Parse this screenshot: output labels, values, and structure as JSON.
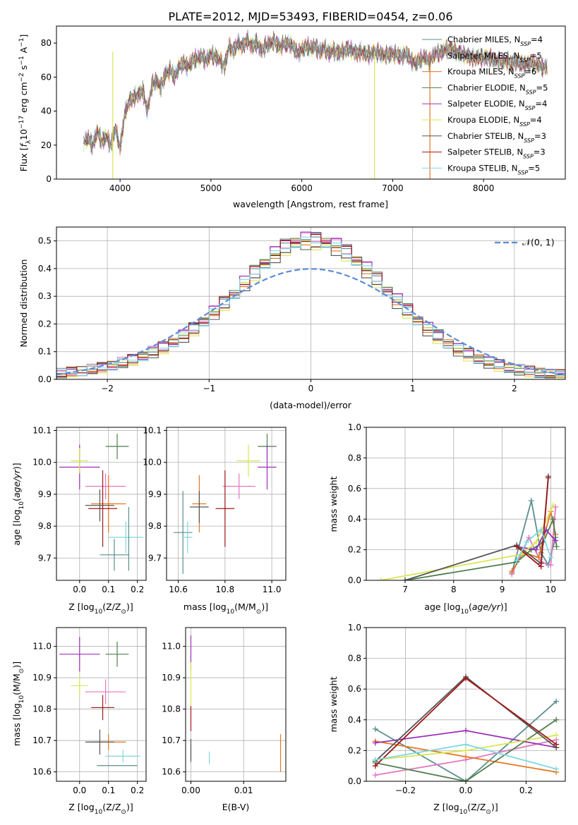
{
  "title": "PLATE=2012, MJD=53493, FIBERID=0454, z=0.06",
  "colors": {
    "Chabrier MILES": "#5b8e8e",
    "Salpeter MILES": "#e377c2",
    "Kroupa MILES": "#e6761f",
    "Chabrier ELODIE": "#4f7f4f",
    "Salpeter ELODIE": "#9b30b8",
    "Kroupa ELODIE": "#d9e650",
    "Chabrier STELIB": "#555555",
    "Salpeter STELIB": "#a01818",
    "Kroupa STELIB": "#80d8e0",
    "gauss": "#5b8bd8",
    "grid": "#b0b0b0"
  },
  "chart_data": [
    {
      "id": "spectrum",
      "type": "line",
      "xlabel": "wavelength [Angstrom, rest frame]",
      "ylabel_main": "Flux [",
      "ylabel_sub": "λ",
      "ylabel_mid": "10",
      "ylabel_sup1": "−17",
      "ylabel_rest": " erg cm",
      "ylabel_sup2": "−2",
      "ylabel_rest2": " s",
      "ylabel_sup3": "−1",
      "ylabel_rest3": " A",
      "ylabel_sup4": "−1",
      "ylabel_end": "]",
      "xlim": [
        3300,
        8900
      ],
      "ylim": [
        0,
        90
      ],
      "xticks": [
        4000,
        5000,
        6000,
        7000,
        8000
      ],
      "yticks": [
        0,
        20,
        40,
        60,
        80
      ],
      "x": [
        3600,
        3650,
        3700,
        3750,
        3800,
        3850,
        3900,
        3950,
        4000,
        4050,
        4100,
        4150,
        4200,
        4250,
        4300,
        4350,
        4400,
        4450,
        4500,
        4550,
        4600,
        4650,
        4700,
        4750,
        4800,
        4850,
        4900,
        4950,
        5000,
        5050,
        5100,
        5150,
        5200,
        5250,
        5300,
        5350,
        5400,
        5450,
        5500,
        5550,
        5600,
        5650,
        5700,
        5750,
        5800,
        5850,
        5900,
        5950,
        6000,
        6050,
        6100,
        6150,
        6200,
        6250,
        6300,
        6350,
        6400,
        6450,
        6500,
        6550,
        6600,
        6650,
        6700,
        6750,
        6800,
        6850,
        6900,
        6950,
        7000,
        7050,
        7100,
        7150,
        7200,
        7250,
        7300,
        7350,
        7400,
        7450,
        7500,
        7550,
        7600,
        7650,
        7700,
        7750,
        7800,
        7850,
        7900,
        7950,
        8000,
        8050,
        8100,
        8150,
        8200,
        8250,
        8300,
        8350,
        8400,
        8450,
        8500,
        8550,
        8600,
        8650,
        8700
      ],
      "y": [
        22,
        24,
        20,
        28,
        22,
        25,
        20,
        30,
        18,
        38,
        46,
        48,
        50,
        52,
        40,
        55,
        58,
        54,
        62,
        64,
        60,
        66,
        68,
        66,
        70,
        71,
        72,
        70,
        73,
        72,
        70,
        66,
        78,
        76,
        80,
        78,
        82,
        78,
        80,
        76,
        78,
        80,
        81,
        78,
        79,
        80,
        78,
        74,
        76,
        78,
        77,
        78,
        75,
        77,
        74,
        76,
        74,
        75,
        77,
        76,
        74,
        75,
        74,
        73,
        75,
        74,
        73,
        73,
        74,
        73,
        72,
        74,
        70,
        68,
        70,
        72,
        69,
        73,
        74,
        75,
        77,
        76,
        75,
        74,
        73,
        72,
        71,
        72,
        71,
        72,
        70,
        70,
        69,
        70,
        68,
        69,
        68,
        67,
        68,
        68,
        67,
        66,
        66
      ],
      "legend": [
        {
          "name": "Chabrier MILES",
          "n": "4"
        },
        {
          "name": "Salpeter MILES",
          "n": "5"
        },
        {
          "name": "Kroupa MILES",
          "n": "6"
        },
        {
          "name": "Chabrier ELODIE",
          "n": "5"
        },
        {
          "name": "Salpeter ELODIE",
          "n": "4"
        },
        {
          "name": "Kroupa ELODIE",
          "n": "4"
        },
        {
          "name": "Chabrier STELIB",
          "n": "3"
        },
        {
          "name": "Salpeter STELIB",
          "n": "3"
        },
        {
          "name": "Kroupa STELIB",
          "n": "5"
        }
      ],
      "legend_sub": "SSP",
      "legend_prefix": "N",
      "dropouts": [
        {
          "series": "Kroupa ELODIE",
          "x": 3920
        },
        {
          "series": "Kroupa ELODIE",
          "x": 6800
        },
        {
          "series": "Kroupa MILES",
          "x": 7410
        }
      ]
    },
    {
      "id": "residuals",
      "type": "histogram",
      "xlabel": "(data-model)/error",
      "ylabel": "Normed distribution",
      "xlim": [
        -2.5,
        2.5
      ],
      "ylim": [
        0,
        0.55
      ],
      "xticks": [
        -2,
        -1,
        0,
        1,
        2
      ],
      "xtick_labels": [
        "−2",
        "−1",
        "0",
        "1",
        "2"
      ],
      "yticks": [
        0.0,
        0.1,
        0.2,
        0.3,
        0.4,
        0.5
      ],
      "ytick_labels": [
        "0.0",
        "0.1",
        "0.2",
        "0.3",
        "0.4",
        "0.5"
      ],
      "legend_label": "𝒩(0, 1)",
      "bin_edges_start": -2.5,
      "bin_width": 0.1,
      "base_profile": [
        0.022,
        0.026,
        0.03,
        0.036,
        0.042,
        0.05,
        0.06,
        0.071,
        0.084,
        0.098,
        0.115,
        0.135,
        0.157,
        0.182,
        0.21,
        0.242,
        0.275,
        0.31,
        0.348,
        0.385,
        0.42,
        0.452,
        0.478,
        0.495,
        0.502,
        0.5,
        0.495,
        0.48,
        0.458,
        0.43,
        0.397,
        0.36,
        0.322,
        0.284,
        0.248,
        0.214,
        0.183,
        0.155,
        0.13,
        0.108,
        0.09,
        0.075,
        0.062,
        0.051,
        0.042,
        0.035,
        0.029,
        0.024,
        0.02,
        0.017
      ],
      "series_offsets": [
        0.0,
        0.01,
        -0.01,
        0.015,
        0.02,
        -0.015,
        -0.02,
        0.005,
        -0.005
      ]
    },
    {
      "id": "age_vs_Z",
      "type": "scatter",
      "xlabel": "Z [log",
      "xlabel_tail": "(Z/Z",
      "xlabel_end": ")]",
      "ylabel": "age  [log",
      "ylabel_tail": "(age/yr)]",
      "xlim": [
        -0.08,
        0.23
      ],
      "ylim": [
        9.63,
        10.11
      ],
      "xticks": [
        0.0,
        0.1,
        0.2
      ],
      "xtick_labels": [
        "0.0",
        "0.1",
        "0.2"
      ],
      "yticks": [
        9.7,
        9.8,
        9.9,
        10.0,
        10.1
      ],
      "ytick_labels": [
        "9.7",
        "9.8",
        "9.9",
        "10.0",
        "10.1"
      ],
      "points": [
        {
          "series": "Chabrier MILES",
          "x": 0.12,
          "y": 9.71,
          "xe": 0.05,
          "ye": 0.05
        },
        {
          "series": "Salpeter MILES",
          "x": 0.09,
          "y": 9.925,
          "xe": 0.07,
          "ye": 0.04
        },
        {
          "series": "Kroupa MILES",
          "x": 0.1,
          "y": 9.87,
          "xe": 0.06,
          "ye": 0.09
        },
        {
          "series": "Chabrier ELODIE",
          "x": 0.13,
          "y": 10.05,
          "xe": 0.04,
          "ye": 0.04
        },
        {
          "series": "Salpeter ELODIE",
          "x": 0.0,
          "y": 9.985,
          "xe": 0.07,
          "ye": 0.07
        },
        {
          "series": "Kroupa ELODIE",
          "x": 0.0,
          "y": 10.005,
          "xe": 0.03,
          "ye": 0.04
        },
        {
          "series": "Chabrier STELIB",
          "x": 0.07,
          "y": 9.865,
          "xe": 0.05,
          "ye": 0.05
        },
        {
          "series": "Salpeter STELIB",
          "x": 0.08,
          "y": 9.855,
          "xe": 0.05,
          "ye": 0.12
        },
        {
          "series": "Kroupa STELIB",
          "x": 0.16,
          "y": 9.765,
          "xe": 0.06,
          "ye": 0.05
        },
        {
          "series": "Chabrier MILES2",
          "x": 0.17,
          "y": 9.76,
          "xe": 0.0,
          "ye": 0.1
        }
      ]
    },
    {
      "id": "age_vs_mass",
      "type": "scatter",
      "xlabel": "mass [log",
      "xlabel_tail": "(M/M",
      "xlabel_end": ")]",
      "xlim": [
        10.55,
        11.06
      ],
      "ylim": [
        9.63,
        10.11
      ],
      "xticks": [
        10.6,
        10.8,
        11.0
      ],
      "xtick_labels": [
        "10.6",
        "10.8",
        "11.0"
      ],
      "yticks": [
        9.7,
        9.8,
        9.9,
        10.0,
        10.1
      ],
      "ytick_labels": [
        "9.7",
        "9.8",
        "9.9",
        "10.0",
        "10.1"
      ],
      "points": [
        {
          "series": "Chabrier MILES",
          "x": 10.62,
          "y": 9.78,
          "xe": 0.04,
          "ye": 0.13
        },
        {
          "series": "Salpeter MILES",
          "x": 10.86,
          "y": 9.925,
          "xe": 0.07,
          "ye": 0.04
        },
        {
          "series": "Kroupa MILES",
          "x": 10.69,
          "y": 9.87,
          "xe": 0.03,
          "ye": 0.09
        },
        {
          "series": "Chabrier ELODIE",
          "x": 10.98,
          "y": 10.05,
          "xe": 0.04,
          "ye": 0.04
        },
        {
          "series": "Salpeter ELODIE",
          "x": 10.98,
          "y": 9.985,
          "xe": 0.04,
          "ye": 0.07
        },
        {
          "series": "Kroupa ELODIE",
          "x": 10.9,
          "y": 10.005,
          "xe": 0.05,
          "ye": 0.05
        },
        {
          "series": "Chabrier STELIB",
          "x": 10.69,
          "y": 9.86,
          "xe": 0.04,
          "ye": 0.05
        },
        {
          "series": "Salpeter STELIB",
          "x": 10.8,
          "y": 9.855,
          "xe": 0.04,
          "ye": 0.12
        },
        {
          "series": "Kroupa STELIB",
          "x": 10.64,
          "y": 9.765,
          "xe": 0.02,
          "ye": 0.05
        }
      ]
    },
    {
      "id": "massweight_vs_age",
      "type": "line",
      "xlabel": "age  [log",
      "xlabel_tail": "(age/yr)]",
      "ylabel": "mass weight",
      "xlim": [
        6.2,
        10.3
      ],
      "ylim": [
        0,
        1.0
      ],
      "xticks": [
        7,
        8,
        9,
        10
      ],
      "xtick_labels": [
        "7",
        "8",
        "9",
        "10"
      ],
      "yticks": [
        0.0,
        0.2,
        0.4,
        0.6,
        0.8,
        1.0
      ],
      "ytick_labels": [
        "0.0",
        "0.2",
        "0.4",
        "0.6",
        "0.8",
        "1.0"
      ],
      "series": [
        {
          "name": "Chabrier MILES",
          "x": [
            9.2,
            9.6,
            9.8,
            9.95,
            10.1
          ],
          "y": [
            0.05,
            0.52,
            0.18,
            0.1,
            0.28
          ]
        },
        {
          "name": "Salpeter MILES",
          "x": [
            9.2,
            9.55,
            9.8,
            10.0,
            10.1
          ],
          "y": [
            0.04,
            0.28,
            0.12,
            0.1,
            0.48
          ]
        },
        {
          "name": "Kroupa MILES",
          "x": [
            9.2,
            9.45,
            9.75,
            10.0,
            10.1
          ],
          "y": [
            0.06,
            0.18,
            0.15,
            0.45,
            0.3
          ]
        },
        {
          "name": "Chabrier ELODIE",
          "x": [
            7.0,
            9.3,
            9.6,
            9.85,
            10.05,
            10.12
          ],
          "y": [
            0.0,
            0.12,
            0.2,
            0.25,
            0.4,
            0.22
          ]
        },
        {
          "name": "Salpeter ELODIE",
          "x": [
            9.3,
            9.7,
            9.9,
            10.1
          ],
          "y": [
            0.22,
            0.2,
            0.33,
            0.26
          ]
        },
        {
          "name": "Kroupa ELODIE",
          "x": [
            6.5,
            9.4,
            9.7,
            10.05
          ],
          "y": [
            0.0,
            0.17,
            0.25,
            0.49
          ]
        },
        {
          "name": "Chabrier STELIB",
          "x": [
            7.0,
            9.3,
            9.8,
            9.95
          ],
          "y": [
            0.0,
            0.23,
            0.11,
            0.68
          ]
        },
        {
          "name": "Salpeter STELIB",
          "x": [
            9.3,
            9.8,
            9.95
          ],
          "y": [
            0.22,
            0.09,
            0.67
          ]
        },
        {
          "name": "Kroupa STELIB",
          "x": [
            9.3,
            9.5,
            9.8,
            10.0
          ],
          "y": [
            0.13,
            0.25,
            0.33,
            0.15
          ]
        }
      ]
    },
    {
      "id": "mass_vs_Z",
      "type": "scatter",
      "xlabel": "Z [log",
      "xlabel_tail": "(Z/Z",
      "xlabel_end": ")]",
      "ylabel": "mass [log",
      "ylabel_tail": "(M/M",
      "ylabel_end": ")]",
      "xlim": [
        -0.08,
        0.23
      ],
      "ylim": [
        10.57,
        11.06
      ],
      "xticks": [
        0.0,
        0.1,
        0.2
      ],
      "xtick_labels": [
        "0.0",
        "0.1",
        "0.2"
      ],
      "yticks": [
        10.6,
        10.7,
        10.8,
        10.9,
        11.0
      ],
      "ytick_labels": [
        "10.6",
        "10.7",
        "10.8",
        "10.9",
        "11.0"
      ],
      "points": [
        {
          "series": "Chabrier MILES",
          "x": 0.13,
          "y": 10.62,
          "xe": 0.07,
          "ye": 0.0
        },
        {
          "series": "Salpeter MILES",
          "x": 0.09,
          "y": 10.855,
          "xe": 0.07,
          "ye": 0.04
        },
        {
          "series": "Kroupa MILES",
          "x": 0.1,
          "y": 10.695,
          "xe": 0.06,
          "ye": 0.025
        },
        {
          "series": "Chabrier ELODIE",
          "x": 0.13,
          "y": 10.975,
          "xe": 0.04,
          "ye": 0.04
        },
        {
          "series": "Salpeter ELODIE",
          "x": 0.0,
          "y": 10.975,
          "xe": 0.07,
          "ye": 0.055
        },
        {
          "series": "Kroupa ELODIE",
          "x": 0.0,
          "y": 10.875,
          "xe": 0.03,
          "ye": 0.035
        },
        {
          "series": "Chabrier STELIB",
          "x": 0.07,
          "y": 10.695,
          "xe": 0.05,
          "ye": 0.04
        },
        {
          "series": "Salpeter STELIB",
          "x": 0.08,
          "y": 10.805,
          "xe": 0.04,
          "ye": 0.04
        },
        {
          "series": "Kroupa STELIB",
          "x": 0.15,
          "y": 10.65,
          "xe": 0.06,
          "ye": 0.02
        }
      ]
    },
    {
      "id": "mass_vs_ebv",
      "type": "scatter",
      "xlabel": "E(B-V)",
      "xlim": [
        -0.001,
        0.018
      ],
      "ylim": [
        10.57,
        11.06
      ],
      "xticks": [
        0.0,
        0.01
      ],
      "xtick_labels": [
        "0.00",
        "0.01"
      ],
      "yticks": [
        10.6,
        10.7,
        10.8,
        10.9,
        11.0
      ],
      "ytick_labels": [
        "10.6",
        "10.7",
        "10.8",
        "10.9",
        "11.0"
      ],
      "points": [
        {
          "series": "Chabrier MILES",
          "x": 0.0,
          "y": 10.66,
          "xe": 0.0,
          "ye": 0.03
        },
        {
          "series": "Kroupa MILES",
          "x": 0.017,
          "y": 10.66,
          "xe": 0.0,
          "ye": 0.06
        },
        {
          "series": "Salpeter ELODIE",
          "x": 0.0,
          "y": 10.98,
          "xe": 0.0,
          "ye": 0.055
        },
        {
          "series": "Kroupa ELODIE",
          "x": 0.0,
          "y": 10.88,
          "xe": 0.0,
          "ye": 0.07
        },
        {
          "series": "Salpeter STELIB",
          "x": 0.0,
          "y": 10.77,
          "xe": 0.0,
          "ye": 0.04
        },
        {
          "series": "Chabrier STELIB",
          "x": 0.0,
          "y": 10.67,
          "xe": 0.0,
          "ye": 0.035
        },
        {
          "series": "Kroupa STELIB",
          "x": 0.0035,
          "y": 10.645,
          "xe": 0.0,
          "ye": 0.02
        }
      ]
    },
    {
      "id": "massweight_vs_Z",
      "type": "line",
      "xlabel": "Z [log",
      "xlabel_tail": "(Z/Z",
      "xlabel_end": ")]",
      "ylabel": "mass weight",
      "xlim": [
        -0.33,
        0.33
      ],
      "ylim": [
        0,
        1.0
      ],
      "xticks": [
        -0.2,
        0.0,
        0.2
      ],
      "xtick_labels": [
        "−0.2",
        "0.0",
        "0.2"
      ],
      "yticks": [
        0.0,
        0.2,
        0.4,
        0.6,
        0.8,
        1.0
      ],
      "ytick_labels": [
        "0.0",
        "0.2",
        "0.4",
        "0.6",
        "0.8",
        "1.0"
      ],
      "series": [
        {
          "name": "Chabrier MILES",
          "x": [
            -0.3,
            0.0,
            0.3
          ],
          "y": [
            0.34,
            0.0,
            0.52
          ]
        },
        {
          "name": "Salpeter MILES",
          "x": [
            -0.3,
            0.0,
            0.3
          ],
          "y": [
            0.04,
            0.14,
            0.27
          ]
        },
        {
          "name": "Kroupa MILES",
          "x": [
            -0.3,
            0.0,
            0.3
          ],
          "y": [
            0.26,
            0.16,
            0.06
          ]
        },
        {
          "name": "Chabrier ELODIE",
          "x": [
            -0.3,
            0.0,
            0.3
          ],
          "y": [
            0.12,
            0.0,
            0.4
          ]
        },
        {
          "name": "Salpeter ELODIE",
          "x": [
            -0.3,
            0.0,
            0.3
          ],
          "y": [
            0.25,
            0.33,
            0.22
          ]
        },
        {
          "name": "Kroupa ELODIE",
          "x": [
            -0.3,
            0.0,
            0.3
          ],
          "y": [
            0.14,
            0.2,
            0.3
          ]
        },
        {
          "name": "Chabrier STELIB",
          "x": [
            -0.3,
            0.0,
            0.3
          ],
          "y": [
            0.13,
            0.68,
            0.22
          ]
        },
        {
          "name": "Salpeter STELIB",
          "x": [
            -0.3,
            0.0,
            0.3
          ],
          "y": [
            0.1,
            0.67,
            0.24
          ]
        },
        {
          "name": "Kroupa STELIB",
          "x": [
            -0.3,
            0.0,
            0.3
          ],
          "y": [
            0.14,
            0.24,
            0.08
          ]
        }
      ]
    }
  ]
}
